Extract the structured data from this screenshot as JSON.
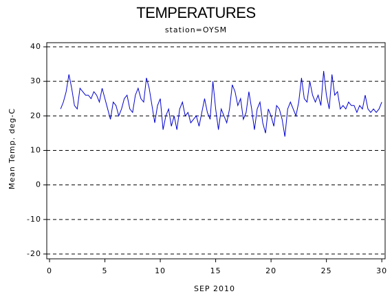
{
  "chart_data": {
    "type": "line",
    "title": "TEMPERATURES",
    "subtitle": "station=OYSM",
    "x_label": "SEP 2010",
    "y_label": "Mean Temp. deg-C",
    "xlim": [
      -0.25,
      30.3
    ],
    "xticks": [
      0,
      5,
      10,
      15,
      20,
      25,
      30
    ],
    "ylim": [
      -21.4,
      41.2
    ],
    "yticks": [
      -20,
      -10,
      0,
      10,
      20,
      30,
      40
    ],
    "grid": true,
    "x": [
      1,
      1.25,
      1.5,
      1.75,
      2,
      2.25,
      2.5,
      2.75,
      3,
      3.25,
      3.5,
      3.75,
      4,
      4.25,
      4.5,
      4.75,
      5,
      5.25,
      5.5,
      5.75,
      6,
      6.25,
      6.5,
      6.75,
      7,
      7.25,
      7.5,
      7.75,
      8,
      8.25,
      8.5,
      8.75,
      9,
      9.25,
      9.5,
      9.75,
      10,
      10.25,
      10.5,
      10.75,
      11,
      11.25,
      11.5,
      11.75,
      12,
      12.25,
      12.5,
      12.75,
      13,
      13.25,
      13.5,
      13.75,
      14,
      14.25,
      14.5,
      14.75,
      15,
      15.25,
      15.5,
      15.75,
      16,
      16.25,
      16.5,
      16.75,
      17,
      17.25,
      17.5,
      17.75,
      18,
      18.25,
      18.5,
      18.75,
      19,
      19.25,
      19.5,
      19.75,
      20,
      20.25,
      20.5,
      20.75,
      21,
      21.25,
      21.5,
      21.75,
      22,
      22.25,
      22.5,
      22.75,
      23,
      23.25,
      23.5,
      23.75,
      24,
      24.25,
      24.5,
      24.75,
      25,
      25.25,
      25.5,
      25.75,
      26,
      26.25,
      26.5,
      26.75,
      27,
      27.25,
      27.5,
      27.75,
      28,
      28.25,
      28.5,
      28.75,
      29,
      29.25,
      29.5,
      29.75,
      30
    ],
    "series": [
      {
        "color": "#0000cc",
        "values": [
          22,
          24,
          27,
          32,
          28,
          23,
          22,
          28,
          27,
          26,
          26,
          25,
          27,
          26,
          24,
          28,
          25,
          22,
          19,
          24,
          23,
          20,
          22,
          25,
          26,
          22,
          21,
          26,
          28,
          25,
          24,
          31,
          28,
          23,
          18,
          23,
          25,
          16,
          20,
          22,
          17,
          20,
          16,
          22,
          24,
          20,
          21,
          18,
          19,
          20,
          17,
          21,
          25,
          21,
          19,
          30,
          22,
          16,
          22,
          20,
          18,
          22,
          29,
          27,
          23,
          25,
          19,
          21,
          27,
          22,
          16,
          22,
          24,
          18,
          15,
          22,
          20,
          17,
          23,
          22,
          19,
          14,
          22,
          24,
          22,
          20,
          24,
          31,
          25,
          24,
          30,
          26,
          24,
          26,
          23,
          33,
          26,
          22,
          32,
          26,
          27,
          22,
          23,
          22,
          24,
          23,
          23,
          21,
          23,
          22,
          26,
          22,
          21,
          22,
          21,
          22,
          24
        ]
      }
    ]
  }
}
